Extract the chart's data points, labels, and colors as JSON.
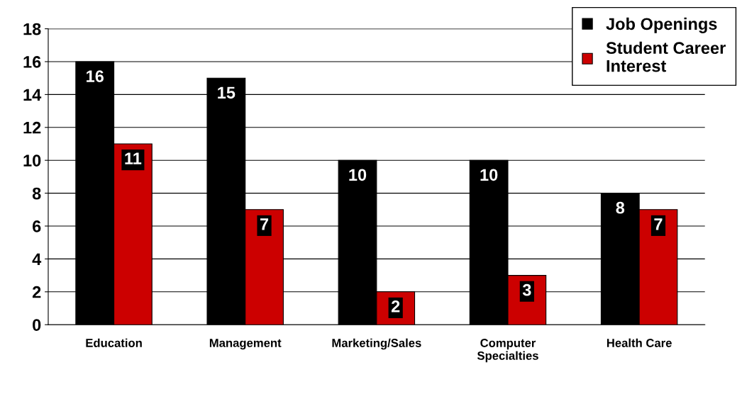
{
  "chart_data": {
    "type": "bar",
    "categories": [
      "Education",
      "Management",
      "Marketing/Sales",
      "Computer\nSpecialties",
      "Health Care"
    ],
    "series": [
      {
        "name": "Job Openings",
        "color": "#000000",
        "values": [
          16,
          15,
          10,
          10,
          8
        ]
      },
      {
        "name": "Student Career\nInterest",
        "color": "#cc0000",
        "values": [
          11,
          7,
          2,
          3,
          7
        ]
      }
    ],
    "ylim": [
      0,
      18
    ],
    "yticks": [
      0,
      2,
      4,
      6,
      8,
      10,
      12,
      14,
      16,
      18
    ],
    "grid": "y",
    "legend": "top right",
    "data_labels": true
  }
}
